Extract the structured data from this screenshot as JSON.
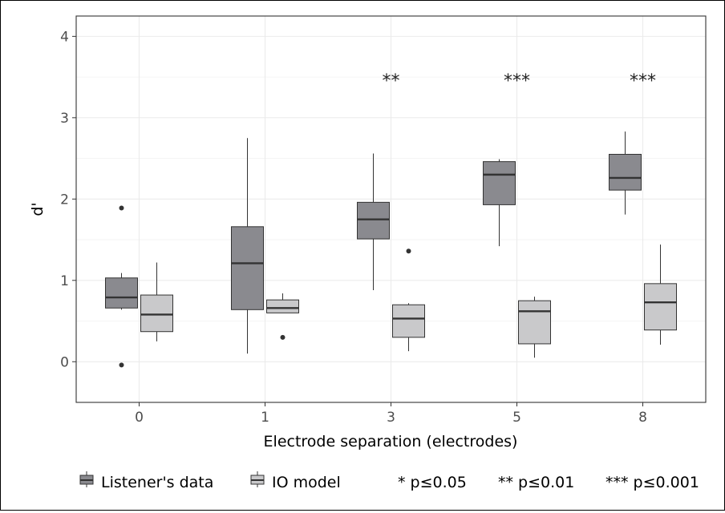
{
  "chart_data": {
    "type": "boxplot",
    "xlabel": "Electrode separation (electrodes)",
    "ylabel": "d'",
    "ylim": [
      -0.5,
      4.25
    ],
    "yticks": [
      "0",
      "1",
      "2",
      "3",
      "4"
    ],
    "grid": true,
    "legend_position": "bottom",
    "categories": [
      "0",
      "1",
      "3",
      "5",
      "8"
    ],
    "series": [
      {
        "name": "Listener's data",
        "color": "#8a8a8f",
        "boxes": [
          {
            "q1": 0.66,
            "median": 0.79,
            "q3": 1.03,
            "whisker_low": 0.64,
            "whisker_high": 1.09,
            "outliers": [
              1.89,
              -0.04
            ]
          },
          {
            "q1": 0.64,
            "median": 1.21,
            "q3": 1.66,
            "whisker_low": 0.1,
            "whisker_high": 2.75,
            "outliers": []
          },
          {
            "q1": 1.51,
            "median": 1.75,
            "q3": 1.96,
            "whisker_low": 0.88,
            "whisker_high": 2.56,
            "outliers": []
          },
          {
            "q1": 1.93,
            "median": 2.3,
            "q3": 2.46,
            "whisker_low": 1.42,
            "whisker_high": 2.49,
            "outliers": []
          },
          {
            "q1": 2.11,
            "median": 2.26,
            "q3": 2.55,
            "whisker_low": 1.81,
            "whisker_high": 2.83,
            "outliers": []
          }
        ]
      },
      {
        "name": "IO model",
        "color": "#c9c9cb",
        "boxes": [
          {
            "q1": 0.37,
            "median": 0.58,
            "q3": 0.82,
            "whisker_low": 0.25,
            "whisker_high": 1.22,
            "outliers": []
          },
          {
            "q1": 0.6,
            "median": 0.66,
            "q3": 0.76,
            "whisker_low": 0.6,
            "whisker_high": 0.84,
            "outliers": [
              0.3
            ]
          },
          {
            "q1": 0.3,
            "median": 0.53,
            "q3": 0.7,
            "whisker_low": 0.13,
            "whisker_high": 0.72,
            "outliers": [
              1.36
            ]
          },
          {
            "q1": 0.22,
            "median": 0.62,
            "q3": 0.75,
            "whisker_low": 0.05,
            "whisker_high": 0.8,
            "outliers": []
          },
          {
            "q1": 0.39,
            "median": 0.73,
            "q3": 0.96,
            "whisker_low": 0.21,
            "whisker_high": 1.44,
            "outliers": []
          }
        ]
      }
    ],
    "annotations": [
      {
        "category": "3",
        "text": "**",
        "y": 3.5
      },
      {
        "category": "5",
        "text": "***",
        "y": 3.5
      },
      {
        "category": "8",
        "text": "***",
        "y": 3.5
      }
    ],
    "significance_legend": [
      "* p≤0.05",
      "** p≤0.01",
      "*** p≤0.001"
    ]
  }
}
